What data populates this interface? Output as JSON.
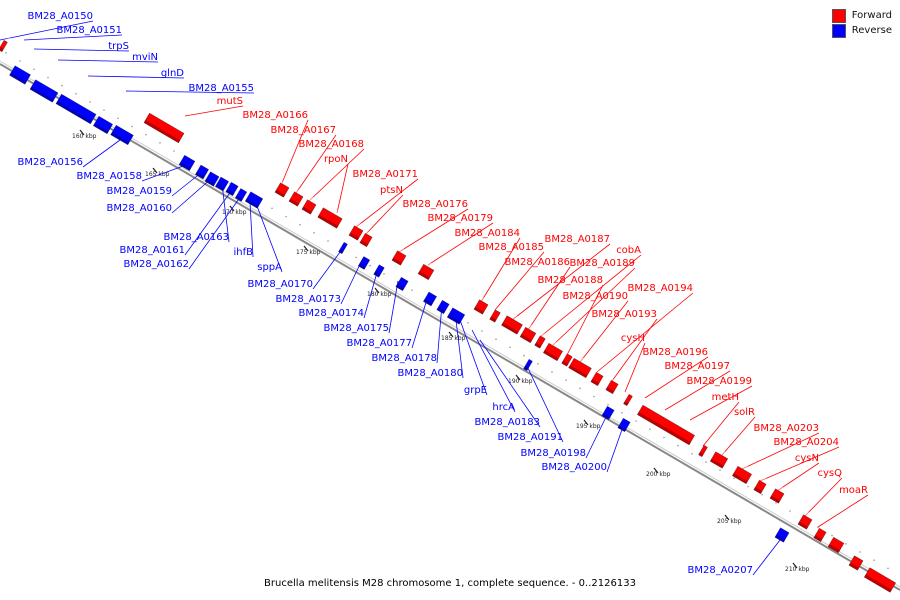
{
  "legend": {
    "forward": {
      "label": "Forward",
      "color": "#ff0000"
    },
    "reverse": {
      "label": "Reverse",
      "color": "#0000ff"
    }
  },
  "caption": "Brucella melitensis M28 chromosome 1, complete sequence. - 0..2126133",
  "scale_labels": [
    "160 kbp",
    "165 kbp",
    "170 kbp",
    "175 kbp",
    "180 kbp",
    "185 kbp",
    "190 kbp",
    "195 kbp",
    "200 kbp",
    "205 kbp",
    "210 kbp"
  ],
  "forward_labels": [
    "mutS",
    "BM28_A0166",
    "BM28_A0167",
    "BM28_A0168",
    "rpoN",
    "BM28_A0171",
    "ptsN",
    "BM28_A0176",
    "BM28_A0179",
    "BM28_A0184",
    "BM28_A0185",
    "BM28_A0187",
    "BM28_A0186",
    "cobA",
    "BM28_A0189",
    "BM28_A0188",
    "BM28_A0190",
    "BM28_A0194",
    "BM28_A0193",
    "cysH",
    "BM28_A0196",
    "BM28_A0197",
    "BM28_A0199",
    "metH",
    "solR",
    "BM28_A0203",
    "BM28_A0204",
    "cysN",
    "cysQ",
    "moaR"
  ],
  "reverse_labels": [
    "BM28_A0150",
    "BM28_A0151",
    "trpS",
    "mviN",
    "glnD",
    "BM28_A0155",
    "BM28_A0156",
    "BM28_A0158",
    "BM28_A0159",
    "BM28_A0160",
    "BM28_A0163",
    "BM28_A0161",
    "BM28_A0162",
    "ihfB",
    "sppA",
    "BM28_A0170",
    "BM28_A0173",
    "BM28_A0174",
    "BM28_A0175",
    "BM28_A0177",
    "BM28_A0178",
    "BM28_A0180",
    "grpE",
    "hrcA",
    "BM28_A0183",
    "BM28_A0191",
    "BM28_A0198",
    "BM28_A0200",
    "BM28_A0207"
  ]
}
